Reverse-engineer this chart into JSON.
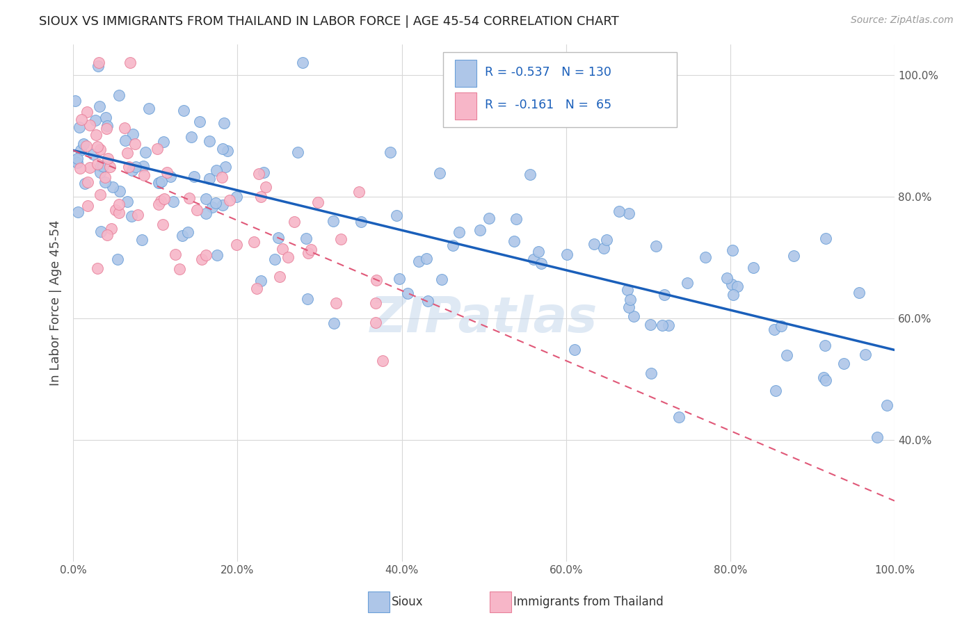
{
  "title": "SIOUX VS IMMIGRANTS FROM THAILAND IN LABOR FORCE | AGE 45-54 CORRELATION CHART",
  "source": "Source: ZipAtlas.com",
  "ylabel": "In Labor Force | Age 45-54",
  "xlim": [
    0.0,
    1.0
  ],
  "ylim": [
    0.2,
    1.05
  ],
  "xticks": [
    0.0,
    0.2,
    0.4,
    0.6,
    0.8,
    1.0
  ],
  "xtick_labels": [
    "0.0%",
    "20.0%",
    "40.0%",
    "60.0%",
    "80.0%",
    "100.0%"
  ],
  "yticks": [
    0.4,
    0.6,
    0.8,
    1.0
  ],
  "ytick_labels": [
    "40.0%",
    "60.0%",
    "80.0%",
    "100.0%"
  ],
  "sioux_color": "#aec6e8",
  "sioux_edge_color": "#6a9fd8",
  "thailand_color": "#f7b6c8",
  "thailand_edge_color": "#e8809a",
  "sioux_line_color": "#1a5fba",
  "thailand_line_color": "#e05878",
  "watermark": "ZIPatlas",
  "background_color": "#ffffff",
  "grid_color": "#d8d8d8",
  "legend_r1": "R = -0.537",
  "legend_n1": "N = 130",
  "legend_r2": "R =  -0.161",
  "legend_n2": "N =  65",
  "sioux_line_x0": 0.0,
  "sioux_line_y0": 0.876,
  "sioux_line_x1": 1.0,
  "sioux_line_y1": 0.548,
  "thailand_line_x0": 0.0,
  "thailand_line_y0": 0.876,
  "thailand_line_x1": 1.0,
  "thailand_line_y1": 0.3
}
